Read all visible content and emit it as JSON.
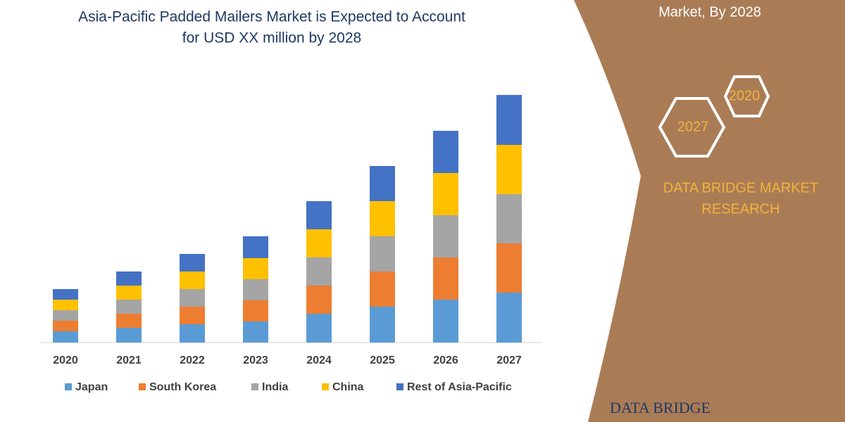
{
  "chart_data": {
    "type": "stacked-bar",
    "title": [
      "Asia-Pacific Padded Mailers Market is Expected to Account",
      "for USD XX million by 2028"
    ],
    "categories": [
      "2020",
      "2021",
      "2022",
      "2023",
      "2024",
      "2025",
      "2026",
      "2027"
    ],
    "series": [
      {
        "name": "Japan",
        "color": "#5b9bd5",
        "values": [
          16,
          21,
          26,
          30,
          41,
          51,
          61,
          71
        ]
      },
      {
        "name": "South Korea",
        "color": "#ed7d31",
        "values": [
          15,
          20,
          25,
          30,
          40,
          50,
          60,
          70
        ]
      },
      {
        "name": "India",
        "color": "#a5a5a5",
        "values": [
          15,
          20,
          25,
          30,
          40,
          50,
          60,
          70
        ]
      },
      {
        "name": "China",
        "color": "#ffc000",
        "values": [
          15,
          20,
          25,
          30,
          40,
          50,
          60,
          70
        ]
      },
      {
        "name": "Rest of Asia-Pacific",
        "color": "#4472c4",
        "values": [
          15,
          20,
          25,
          31,
          40,
          50,
          60,
          71
        ]
      }
    ],
    "ylim": [
      0,
      360
    ]
  },
  "panel": {
    "heading": "Market, By 2028",
    "badges": [
      "2020",
      "2027"
    ],
    "brand": [
      "DATA BRIDGE MARKET",
      "RESEARCH"
    ],
    "logo": "DATA BRIDGE"
  }
}
